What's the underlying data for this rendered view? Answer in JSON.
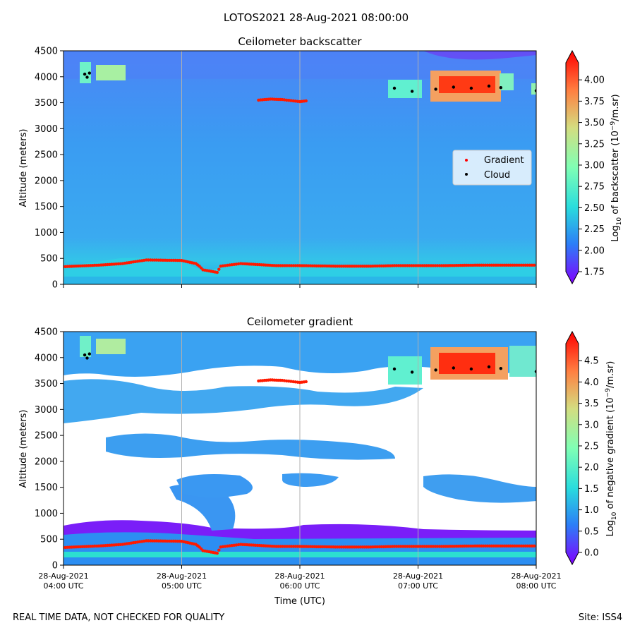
{
  "suptitle": "LOTOS2021 28-Aug-2021 08:00:00",
  "footer": {
    "left": "REAL TIME DATA, NOT CHECKED FOR QUALITY",
    "right": "Site: ISS4"
  },
  "shared_x": {
    "label": "Time (UTC)",
    "ticks": [
      {
        "date": "28-Aug-2021",
        "time": "04:00 UTC",
        "hour": 4.0
      },
      {
        "date": "28-Aug-2021",
        "time": "05:00 UTC",
        "hour": 5.0
      },
      {
        "date": "28-Aug-2021",
        "time": "06:00 UTC",
        "hour": 6.0
      },
      {
        "date": "28-Aug-2021",
        "time": "07:00 UTC",
        "hour": 7.0
      },
      {
        "date": "28-Aug-2021",
        "time": "08:00 UTC",
        "hour": 8.0
      }
    ],
    "xlim": [
      4.0,
      8.0
    ]
  },
  "chart_data": [
    {
      "type": "heatmap",
      "title": "Ceilometer backscatter",
      "xlabel": "",
      "ylabel": "Altitude (meters)",
      "ylim": [
        0,
        4500
      ],
      "yticks": [
        "0",
        "500",
        "1000",
        "1500",
        "2000",
        "2500",
        "3000",
        "3500",
        "4000",
        "4500"
      ],
      "colorbar": {
        "label_prefix": "Log",
        "label_sub": "10",
        "label_mid": " of backscatter (10",
        "label_sup": "−9",
        "label_suffix": "/m.sr)",
        "range": [
          1.75,
          4.2
        ],
        "ticks": [
          "1.75",
          "2.00",
          "2.25",
          "2.50",
          "2.75",
          "3.00",
          "3.25",
          "3.50",
          "3.75",
          "4.00"
        ]
      },
      "legend": {
        "placement": "center-right",
        "items": [
          {
            "label": "Gradient",
            "color": "#ff0000"
          },
          {
            "label": "Cloud",
            "color": "#000000"
          }
        ]
      },
      "gradient_series": [
        [
          4.0,
          340
        ],
        [
          4.3,
          370
        ],
        [
          4.5,
          400
        ],
        [
          4.7,
          470
        ],
        [
          5.0,
          460
        ],
        [
          5.12,
          400
        ],
        [
          5.15,
          350
        ],
        [
          5.18,
          280
        ],
        [
          5.3,
          230
        ],
        [
          5.33,
          350
        ],
        [
          5.5,
          400
        ],
        [
          5.8,
          360
        ],
        [
          6.0,
          360
        ],
        [
          6.3,
          350
        ],
        [
          6.6,
          350
        ],
        [
          6.8,
          360
        ],
        [
          7.2,
          360
        ],
        [
          7.5,
          370
        ],
        [
          7.8,
          370
        ],
        [
          8.0,
          370
        ]
      ],
      "gradient_upper": [
        [
          5.65,
          3550
        ],
        [
          5.75,
          3570
        ],
        [
          5.85,
          3560
        ],
        [
          6.0,
          3520
        ],
        [
          6.07,
          3540
        ]
      ],
      "cloud_series": [
        [
          4.18,
          4050
        ],
        [
          4.2,
          3990
        ],
        [
          4.22,
          4070
        ],
        [
          6.8,
          3780
        ],
        [
          6.95,
          3720
        ],
        [
          7.15,
          3760
        ],
        [
          7.3,
          3800
        ],
        [
          7.45,
          3780
        ],
        [
          7.6,
          3820
        ],
        [
          7.7,
          3790
        ],
        [
          8.0,
          3730
        ]
      ]
    },
    {
      "type": "heatmap",
      "title": "Ceilometer gradient",
      "xlabel": "Time (UTC)",
      "ylabel": "Altitude (meters)",
      "ylim": [
        0,
        4500
      ],
      "yticks": [
        "0",
        "500",
        "1000",
        "1500",
        "2000",
        "2500",
        "3000",
        "3500",
        "4000",
        "4500"
      ],
      "colorbar": {
        "label_prefix": "Log",
        "label_sub": "10",
        "label_mid": " of negative gradient (10",
        "label_sup": "−9",
        "label_suffix": "/m.sr)",
        "range": [
          0.0,
          4.9
        ],
        "ticks": [
          "0.0",
          "0.5",
          "1.0",
          "1.5",
          "2.0",
          "2.5",
          "3.0",
          "3.5",
          "4.0",
          "4.5"
        ]
      },
      "gradient_series": [
        [
          4.0,
          340
        ],
        [
          4.3,
          370
        ],
        [
          4.5,
          400
        ],
        [
          4.7,
          470
        ],
        [
          5.0,
          460
        ],
        [
          5.12,
          400
        ],
        [
          5.15,
          350
        ],
        [
          5.18,
          280
        ],
        [
          5.3,
          230
        ],
        [
          5.33,
          350
        ],
        [
          5.5,
          400
        ],
        [
          5.8,
          360
        ],
        [
          6.0,
          360
        ],
        [
          6.3,
          350
        ],
        [
          6.6,
          350
        ],
        [
          6.8,
          360
        ],
        [
          7.2,
          360
        ],
        [
          7.5,
          370
        ],
        [
          7.8,
          370
        ],
        [
          8.0,
          370
        ]
      ],
      "gradient_upper": [
        [
          5.65,
          3550
        ],
        [
          5.75,
          3570
        ],
        [
          5.85,
          3560
        ],
        [
          6.0,
          3520
        ],
        [
          6.07,
          3540
        ]
      ],
      "cloud_series": [
        [
          4.18,
          4050
        ],
        [
          4.2,
          3990
        ],
        [
          4.22,
          4070
        ],
        [
          6.8,
          3780
        ],
        [
          6.95,
          3720
        ],
        [
          7.15,
          3760
        ],
        [
          7.3,
          3800
        ],
        [
          7.45,
          3780
        ],
        [
          7.6,
          3820
        ],
        [
          7.7,
          3790
        ],
        [
          8.0,
          3730
        ]
      ]
    }
  ]
}
